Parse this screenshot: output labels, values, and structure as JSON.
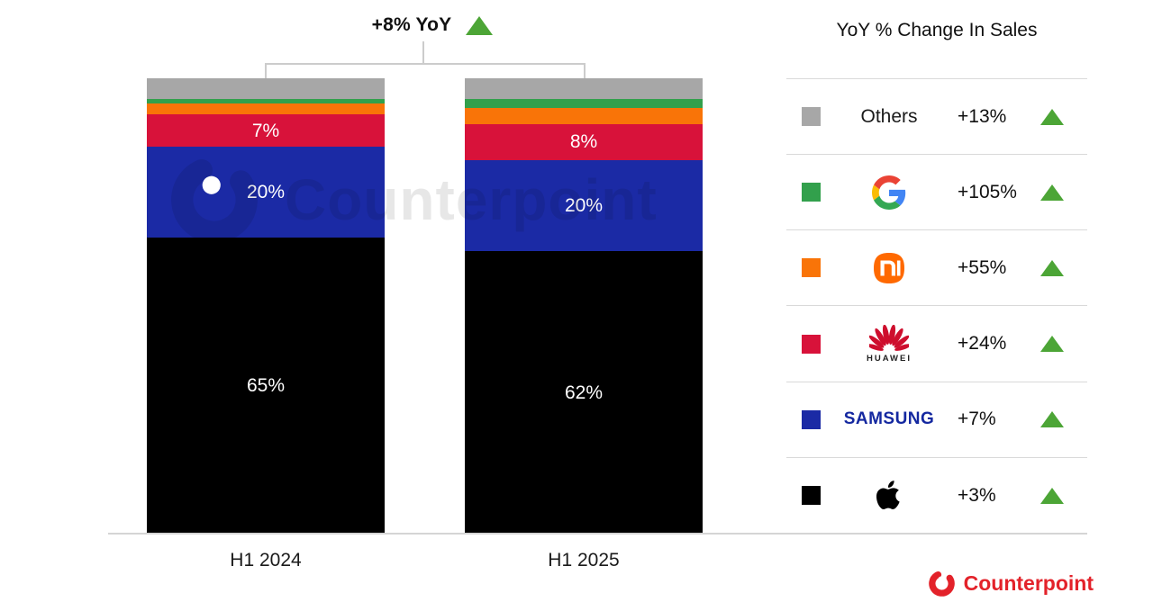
{
  "header": {
    "title": "+8% YoY"
  },
  "chart_data": {
    "type": "bar",
    "stacked": true,
    "title": "+8% YoY",
    "legend_title": "YoY % Change In Sales",
    "categories": [
      "H1 2024",
      "H1 2025"
    ],
    "unit": "% share of sales",
    "ylim": [
      0,
      100
    ],
    "legend_position": "right",
    "series": [
      {
        "name": "Apple",
        "color": "#000000",
        "values": [
          65,
          62
        ],
        "data_labels": [
          "65%",
          "62%"
        ]
      },
      {
        "name": "Samsung",
        "color": "#1b2aa5",
        "values": [
          20,
          20
        ],
        "data_labels": [
          "20%",
          "20%"
        ]
      },
      {
        "name": "Huawei",
        "color": "#d8123a",
        "values": [
          7,
          8
        ],
        "data_labels": [
          "7%",
          "8%"
        ]
      },
      {
        "name": "Xiaomi",
        "color": "#f97408",
        "values": [
          2.5,
          3.5
        ],
        "data_labels": [
          "",
          ""
        ]
      },
      {
        "name": "Google",
        "color": "#32a04c",
        "values": [
          1,
          2
        ],
        "data_labels": [
          "",
          ""
        ]
      },
      {
        "name": "Others",
        "color": "#a7a7a7",
        "values": [
          4.5,
          4.5
        ],
        "data_labels": [
          "",
          ""
        ]
      }
    ]
  },
  "legend": {
    "title": "YoY % Change In Sales",
    "rows": [
      {
        "label": "Others",
        "swatch": "#a7a7a7",
        "change": "+13%",
        "direction": "up"
      },
      {
        "label": "Google",
        "swatch": "#32a04c",
        "change": "+105%",
        "direction": "up"
      },
      {
        "label": "Xiaomi",
        "swatch": "#f97408",
        "change": "+55%",
        "direction": "up"
      },
      {
        "label": "Huawei",
        "swatch": "#d8123a",
        "change": "+24%",
        "direction": "up",
        "wordmark": "HUAWEI"
      },
      {
        "label": "Samsung",
        "swatch": "#1b2aa5",
        "change": "+7%",
        "direction": "up",
        "wordmark": "SAMSUNG"
      },
      {
        "label": "Apple",
        "swatch": "#000000",
        "change": "+3%",
        "direction": "up"
      }
    ]
  },
  "watermark": {
    "text": "Counterpoint"
  },
  "footer": {
    "brand": "Counterpoint"
  },
  "colors": {
    "triangle_green": "#4CA536",
    "samsung_blue": "#1428a0",
    "huawei_red": "#CE0E2D",
    "xiaomi_orange": "#ff6900",
    "counterpoint_red": "#e3222a",
    "google_blue": "#4285F4",
    "google_red": "#EA4335",
    "google_yellow": "#FBBC05",
    "google_green": "#34A853",
    "separator_gray": "#d9d9d9",
    "bracket_gray": "#cccccc"
  }
}
